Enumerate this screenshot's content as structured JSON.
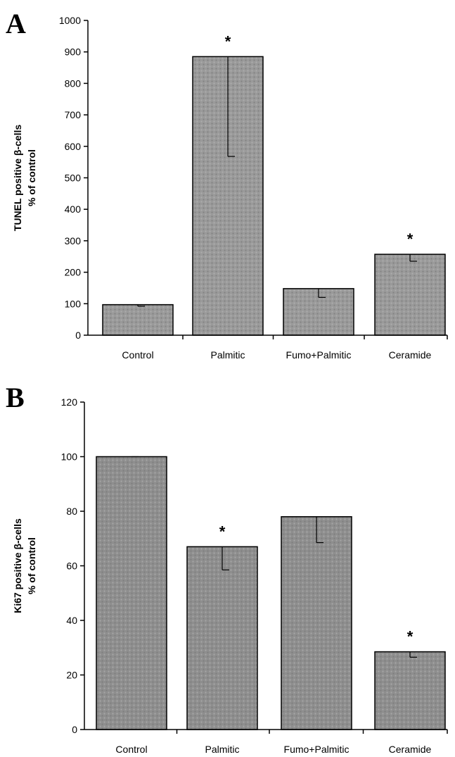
{
  "panels": [
    {
      "letter": "A"
    },
    {
      "letter": "B"
    }
  ],
  "chart_data": [
    {
      "type": "bar",
      "title": "",
      "ylabel_lines": [
        "TUNEL positive β-cells",
        "% of control"
      ],
      "xlabel": "",
      "categories": [
        "Control",
        "Palmitic",
        "Fumo+Palmitic",
        "Ceramide"
      ],
      "values": [
        97,
        885,
        148,
        257
      ],
      "error_low": [
        92,
        568,
        120,
        235
      ],
      "significant": [
        false,
        true,
        false,
        true
      ],
      "significance_marker": "*",
      "ylim": [
        0,
        1000
      ],
      "yticks": [
        0,
        100,
        200,
        300,
        400,
        500,
        600,
        700,
        800,
        900,
        1000
      ],
      "grid": false,
      "bar_color": "#9a9a9a"
    },
    {
      "type": "bar",
      "title": "",
      "ylabel_lines": [
        "Ki67 positive β-cells",
        "% of control"
      ],
      "xlabel": "",
      "categories": [
        "Control",
        "Palmitic",
        "Fumo+Palmitic",
        "Ceramide"
      ],
      "values": [
        100,
        67,
        78,
        28.5
      ],
      "error_low": [
        100,
        58.5,
        68.5,
        26.5
      ],
      "significant": [
        false,
        true,
        false,
        true
      ],
      "significance_marker": "*",
      "ylim": [
        0,
        120
      ],
      "yticks": [
        0,
        20,
        40,
        60,
        80,
        100,
        120
      ],
      "grid": false,
      "bar_color": "#8e8e8e"
    }
  ]
}
